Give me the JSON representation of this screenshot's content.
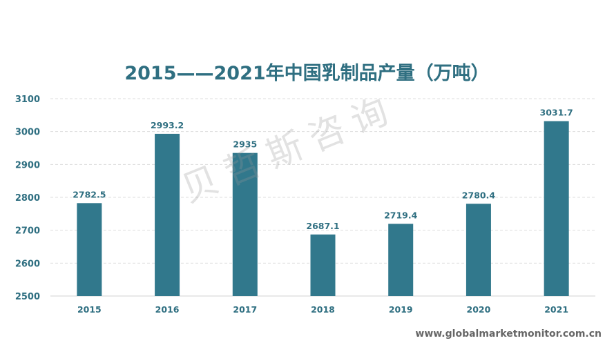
{
  "chart_data": {
    "type": "bar",
    "title": "2015——2021年中国乳制品产量（万吨）",
    "categories": [
      "2015",
      "2016",
      "2017",
      "2018",
      "2019",
      "2020",
      "2021"
    ],
    "values": [
      2782.5,
      2993.2,
      2935,
      2687.1,
      2719.4,
      2780.4,
      3031.7
    ],
    "data_labels": [
      "2782.5",
      "2993.2",
      "2935",
      "2687.1",
      "2719.4",
      "2780.4",
      "3031.7"
    ],
    "ylim": [
      2500,
      3100
    ],
    "yticks": [
      2500,
      2600,
      2700,
      2800,
      2900,
      3000,
      3100
    ],
    "grid": true,
    "bar_color": "#31788c",
    "text_color": "#2f6f81"
  },
  "watermark": "贝哲斯咨询",
  "source": "www.globalmarketmonitor.com.cn"
}
